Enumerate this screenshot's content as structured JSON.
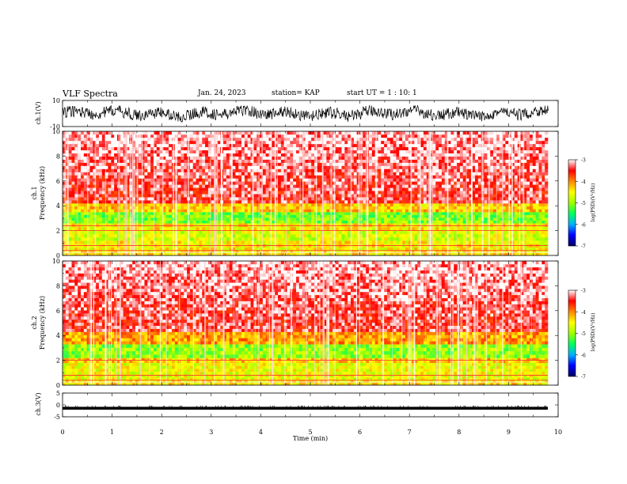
{
  "header": {
    "title": "VLF Spectra",
    "date": "Jan. 24, 2023",
    "station": "station= KAP",
    "start": "start UT = 1 : 10: 1"
  },
  "colors": {
    "cmap": [
      "#000060",
      "#0000ff",
      "#00b0ff",
      "#00ff60",
      "#a0ff00",
      "#ffff00",
      "#ff8800",
      "#ff0000",
      "#ffffff"
    ],
    "trace": "#000000"
  },
  "chart_data": [
    {
      "type": "line",
      "name": "ch.1 waveform",
      "ylabel": "ch.1(V)",
      "ylim": [
        -10,
        10
      ],
      "yticks": [
        "10",
        "-10"
      ],
      "xlim": [
        0,
        10
      ],
      "description_values": {
        "mean": 0,
        "range": [
          -7,
          6
        ]
      }
    },
    {
      "type": "heatmap",
      "name": "ch.1 spectrogram",
      "ylabel_top": "ch.1",
      "ylabel": "Frequency (kHz)",
      "ylim": [
        0,
        10
      ],
      "yticks": [
        "0",
        "2",
        "4",
        "6",
        "8",
        "10"
      ],
      "xlim": [
        0,
        9.8
      ],
      "colorbar": {
        "label": "log(PSD)(V²/Hz)",
        "range": [
          -7,
          -3
        ],
        "ticks": [
          "-3",
          "-4",
          "-5",
          "-6",
          "-7"
        ]
      },
      "bands": [
        {
          "f": [
            0.0,
            0.4
          ],
          "level": -4.4
        },
        {
          "f": [
            0.4,
            1.2
          ],
          "level": -4.5
        },
        {
          "f": [
            1.2,
            2.0
          ],
          "level": -4.7
        },
        {
          "f": [
            2.0,
            2.6
          ],
          "level": -4.5
        },
        {
          "f": [
            2.6,
            3.5
          ],
          "level": -5.1
        },
        {
          "f": [
            3.5,
            4.2
          ],
          "level": -4.3
        },
        {
          "f": [
            4.2,
            10
          ],
          "level": -3.4
        }
      ],
      "lines_khz": [
        0.4,
        0.8,
        2.0,
        2.4
      ]
    },
    {
      "type": "heatmap",
      "name": "ch.2 spectrogram",
      "ylabel_top": "ch.2",
      "ylabel": "Frequency (kHz)",
      "ylim": [
        0,
        10
      ],
      "yticks": [
        "0",
        "2",
        "4",
        "6",
        "8",
        "10"
      ],
      "xlim": [
        0,
        9.8
      ],
      "colorbar": {
        "label": "log(PSD)(V²/Hz)",
        "range": [
          -7,
          -3
        ],
        "ticks": [
          "-3",
          "-4",
          "-5",
          "-6",
          "-7"
        ]
      },
      "bands": [
        {
          "f": [
            0.0,
            0.4
          ],
          "level": -4.4
        },
        {
          "f": [
            0.4,
            1.8
          ],
          "level": -4.6
        },
        {
          "f": [
            1.8,
            2.2
          ],
          "level": -4.3
        },
        {
          "f": [
            2.2,
            3.3
          ],
          "level": -5.0
        },
        {
          "f": [
            3.3,
            4.3
          ],
          "level": -4.1
        },
        {
          "f": [
            4.3,
            10
          ],
          "level": -3.4
        }
      ],
      "lines_khz": [
        0.4,
        0.8,
        2.0
      ]
    },
    {
      "type": "line",
      "name": "ch.3 waveform",
      "ylabel": "ch.3(V)",
      "ylim": [
        -5,
        5
      ],
      "yticks": [
        "5",
        "0",
        "-5"
      ],
      "xlim": [
        0,
        10
      ],
      "description_values": {
        "mean": -1.4,
        "range": [
          -2,
          -0.8
        ]
      }
    }
  ],
  "xaxis": {
    "label": "Time (min)",
    "ticks": [
      "0",
      "1",
      "2",
      "3",
      "4",
      "5",
      "6",
      "7",
      "8",
      "9",
      "10"
    ]
  }
}
